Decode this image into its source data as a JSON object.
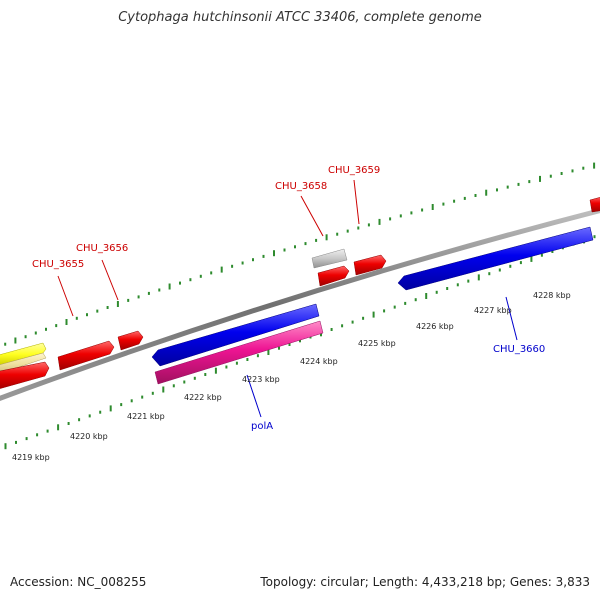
{
  "title": "Cytophaga hutchinsonii ATCC 33406, complete genome",
  "footer": {
    "accession": "Accession: NC_008255",
    "summary": "Topology: circular; Length: 4,433,218 bp; Genes: 3,833"
  },
  "colors": {
    "backbone": "#808080",
    "tick": "#2e8b2e",
    "label_forward": "#cc0000",
    "label_reverse": "#0000cc",
    "gene_red": "#ee0000",
    "gene_blue": "#0000ee",
    "gene_magenta": "#ee1493",
    "gene_yellow": "#ffff33",
    "gene_tan": "#efe0a0",
    "gene_gray": "#c8c8c8"
  },
  "scale_labels": [
    {
      "text": "4219 kbp",
      "kbp": 4219
    },
    {
      "text": "4220 kbp",
      "kbp": 4220
    },
    {
      "text": "4221 kbp",
      "kbp": 4221
    },
    {
      "text": "4222 kbp",
      "kbp": 4222
    },
    {
      "text": "4223 kbp",
      "kbp": 4223
    },
    {
      "text": "4224 kbp",
      "kbp": 4224
    },
    {
      "text": "4225 kbp",
      "kbp": 4225
    },
    {
      "text": "4226 kbp",
      "kbp": 4226
    },
    {
      "text": "4227 kbp",
      "kbp": 4227
    },
    {
      "text": "4228 kbp",
      "kbp": 4228
    }
  ],
  "gene_labels": [
    {
      "text": "CHU_3655",
      "strand": "forward"
    },
    {
      "text": "CHU_3656",
      "strand": "forward"
    },
    {
      "text": "CHU_3658",
      "strand": "forward"
    },
    {
      "text": "CHU_3659",
      "strand": "forward"
    },
    {
      "text": "polA",
      "strand": "reverse"
    },
    {
      "text": "CHU_3660",
      "strand": "reverse"
    }
  ]
}
